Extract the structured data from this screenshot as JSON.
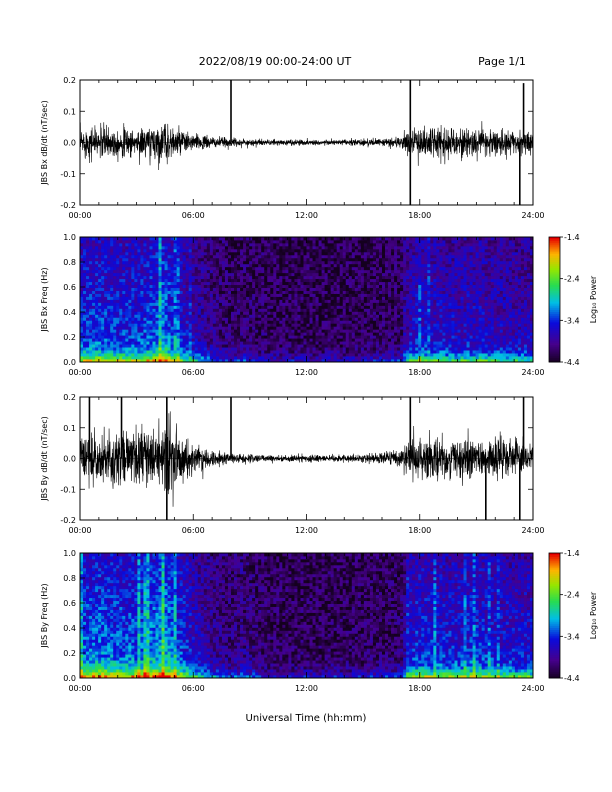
{
  "header": {
    "title": "2022/08/19  00:00-24:00 UT",
    "page": "Page 1/1"
  },
  "x_axis": {
    "label": "Universal Time (hh:mm)",
    "ticks": [
      "00:00",
      "06:00",
      "12:00",
      "18:00",
      "24:00"
    ]
  },
  "chart_data": [
    {
      "type": "line",
      "ylabel": "JBS Bx dB/dt (nT/sec)",
      "xlim": [
        0,
        24
      ],
      "ylim": [
        -0.2,
        0.2
      ],
      "yticks": [
        "0.2",
        "0.1",
        "0.0",
        "-0.1",
        "-0.2"
      ],
      "amplitude_envelope": {
        "hours": [
          0,
          1,
          2,
          3,
          4,
          4.5,
          5,
          6,
          7,
          8,
          9,
          10,
          11,
          12,
          13,
          14,
          15,
          16,
          17,
          17.5,
          18,
          19,
          20,
          21,
          22,
          23,
          24
        ],
        "values": [
          0.05,
          0.06,
          0.05,
          0.05,
          0.06,
          0.07,
          0.05,
          0.03,
          0.02,
          0.015,
          0.012,
          0.01,
          0.01,
          0.01,
          0.01,
          0.01,
          0.012,
          0.015,
          0.02,
          0.05,
          0.06,
          0.055,
          0.05,
          0.05,
          0.045,
          0.04,
          0.04
        ]
      },
      "spikes": [
        {
          "hour": 8.0,
          "value": 0.2
        },
        {
          "hour": 17.5,
          "value": 0.2
        },
        {
          "hour": 17.5,
          "value": -0.2
        },
        {
          "hour": 23.3,
          "value": -0.2
        },
        {
          "hour": 23.5,
          "value": 0.19
        }
      ]
    },
    {
      "type": "heatmap",
      "ylabel": "JBS Bx Freq (Hz)",
      "xlim": [
        0,
        24
      ],
      "ylim": [
        0.0,
        1.0
      ],
      "yticks": [
        "1.0",
        "0.8",
        "0.6",
        "0.4",
        "0.2",
        "0.0"
      ],
      "colorbar": {
        "label": "Log₁₀ Power",
        "ticks": [
          "-1.4",
          "-2.4",
          "-3.4",
          "-4.4"
        ],
        "min": -4.4,
        "max": -1.4
      },
      "activity": {
        "hours": [
          0,
          1,
          2,
          3,
          4,
          4.5,
          5,
          6,
          7,
          8,
          9,
          10,
          12,
          14,
          16,
          17,
          17.5,
          18,
          19,
          20,
          21,
          22,
          23,
          24
        ],
        "values": [
          0.55,
          0.6,
          0.55,
          0.55,
          0.65,
          0.75,
          0.55,
          0.35,
          0.2,
          0.1,
          0.12,
          0.05,
          0.05,
          0.05,
          0.07,
          0.1,
          0.4,
          0.45,
          0.42,
          0.4,
          0.42,
          0.38,
          0.35,
          0.35
        ]
      }
    },
    {
      "type": "line",
      "ylabel": "JBS By dB/dt (nT/sec)",
      "xlim": [
        0,
        24
      ],
      "ylim": [
        -0.2,
        0.2
      ],
      "yticks": [
        "0.2",
        "0.1",
        "0.0",
        "-0.1",
        "-0.2"
      ],
      "amplitude_envelope": {
        "hours": [
          0,
          1,
          2,
          3,
          4,
          4.5,
          5,
          6,
          7,
          8,
          9,
          10,
          11,
          12,
          13,
          14,
          15,
          16,
          17,
          17.5,
          18,
          19,
          20,
          21,
          22,
          23,
          24
        ],
        "values": [
          0.08,
          0.1,
          0.09,
          0.09,
          0.1,
          0.14,
          0.1,
          0.05,
          0.03,
          0.02,
          0.015,
          0.012,
          0.012,
          0.012,
          0.012,
          0.012,
          0.015,
          0.02,
          0.03,
          0.07,
          0.08,
          0.075,
          0.07,
          0.07,
          0.075,
          0.06,
          0.05
        ]
      },
      "spikes": [
        {
          "hour": 0.5,
          "value": 0.2
        },
        {
          "hour": 2.2,
          "value": 0.2
        },
        {
          "hour": 4.6,
          "value": 0.2
        },
        {
          "hour": 4.6,
          "value": -0.2
        },
        {
          "hour": 8.0,
          "value": 0.2
        },
        {
          "hour": 17.5,
          "value": 0.2
        },
        {
          "hour": 21.5,
          "value": -0.2
        },
        {
          "hour": 23.3,
          "value": -0.2
        },
        {
          "hour": 23.5,
          "value": 0.2
        }
      ]
    },
    {
      "type": "heatmap",
      "ylabel": "JBS By Freq (Hz)",
      "xlim": [
        0,
        24
      ],
      "ylim": [
        0.0,
        1.0
      ],
      "yticks": [
        "1.0",
        "0.8",
        "0.6",
        "0.4",
        "0.2",
        "0.0"
      ],
      "colorbar": {
        "label": "Log₁₀ Power",
        "ticks": [
          "-1.4",
          "-2.4",
          "-3.4",
          "-4.4"
        ],
        "min": -4.4,
        "max": -1.4
      },
      "activity": {
        "hours": [
          0,
          1,
          2,
          3,
          4,
          4.5,
          5,
          6,
          7,
          8,
          9,
          10,
          12,
          14,
          16,
          17,
          17.5,
          18,
          19,
          20,
          21,
          22,
          23,
          24
        ],
        "values": [
          0.65,
          0.7,
          0.65,
          0.65,
          0.75,
          0.85,
          0.65,
          0.45,
          0.25,
          0.15,
          0.18,
          0.07,
          0.06,
          0.06,
          0.08,
          0.12,
          0.5,
          0.55,
          0.52,
          0.5,
          0.55,
          0.48,
          0.45,
          0.45
        ]
      }
    }
  ]
}
